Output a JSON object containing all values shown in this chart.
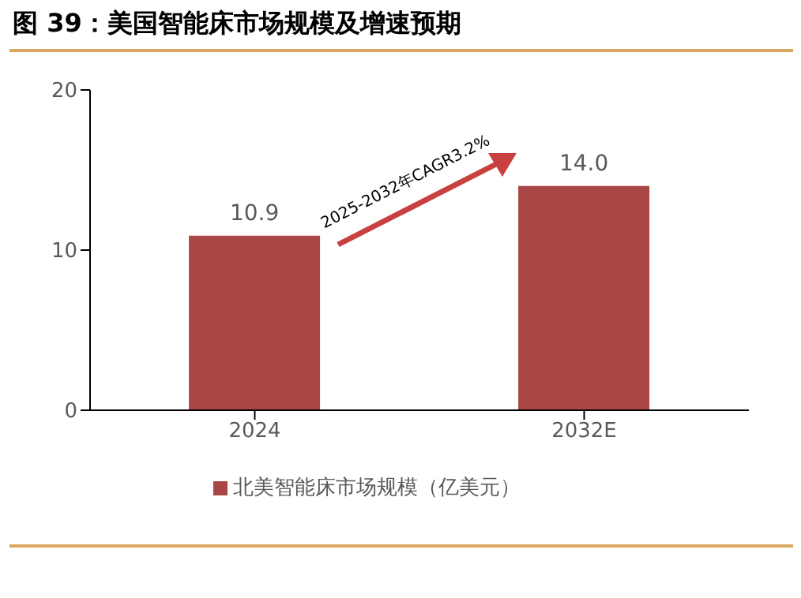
{
  "chart_data": {
    "type": "bar",
    "title": "图 39：美国智能床市场规模及增速预期",
    "categories": [
      "2024",
      "2032E"
    ],
    "series": [
      {
        "name": "北美智能床市场规模（亿美元）",
        "color": "#a84745",
        "values": [
          10.9,
          14.0
        ],
        "value_labels": [
          "10.9",
          "14.0"
        ]
      }
    ],
    "ylim": [
      0,
      20
    ],
    "yticks": [
      0,
      10,
      20
    ],
    "legend": "bottom",
    "annotations": [
      "2025-2032年CAGR3.2%"
    ]
  }
}
